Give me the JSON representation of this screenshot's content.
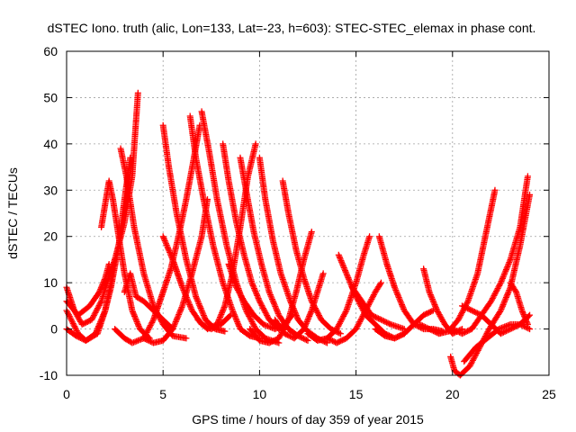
{
  "chart_data": {
    "type": "scatter",
    "title": "dSTEC Iono. truth (alic, Lon=133, Lat=-23, h=603): STEC-STEC_elemax in phase cont.",
    "xlabel": "GPS time / hours of day 359 of year 2015",
    "ylabel": "dSTEC  / TECUs",
    "xlim": [
      0,
      25
    ],
    "ylim": [
      -10,
      60
    ],
    "xticks": [
      0,
      5,
      10,
      15,
      20,
      25
    ],
    "yticks": [
      -10,
      0,
      10,
      20,
      30,
      40,
      50,
      60
    ],
    "grid": true,
    "marker": "plus",
    "color": "#ff0000",
    "series": [
      {
        "points": [
          [
            0.0,
            9
          ],
          [
            0.4,
            4
          ],
          [
            0.8,
            1
          ],
          [
            1.3,
            2
          ],
          [
            1.8,
            6
          ],
          [
            2.1,
            10
          ],
          [
            2.5,
            15
          ],
          [
            3.0,
            23
          ],
          [
            3.4,
            33
          ],
          [
            3.7,
            51
          ]
        ]
      },
      {
        "points": [
          [
            0.0,
            4
          ],
          [
            0.6,
            -1
          ],
          [
            1.0,
            -2.5
          ],
          [
            1.6,
            -1
          ],
          [
            2.0,
            4
          ],
          [
            2.3,
            9
          ],
          [
            2.7,
            18
          ],
          [
            3.0,
            28
          ],
          [
            3.3,
            37
          ]
        ]
      },
      {
        "points": [
          [
            0.0,
            0
          ],
          [
            0.5,
            -1.5
          ],
          [
            1.0,
            -2.5
          ],
          [
            1.5,
            -1
          ],
          [
            2.0,
            4
          ],
          [
            2.3,
            10
          ],
          [
            2.5,
            15
          ]
        ]
      },
      {
        "points": [
          [
            1.8,
            22
          ],
          [
            2.0,
            27
          ],
          [
            2.2,
            32
          ],
          [
            2.4,
            28
          ],
          [
            2.7,
            20
          ],
          [
            3.0,
            12
          ],
          [
            3.4,
            4
          ],
          [
            3.8,
            0
          ],
          [
            4.3,
            -2
          ]
        ]
      },
      {
        "points": [
          [
            0.0,
            6
          ],
          [
            0.6,
            3
          ],
          [
            1.2,
            5
          ],
          [
            1.7,
            8
          ],
          [
            2.0,
            11
          ],
          [
            2.2,
            14
          ]
        ]
      },
      {
        "points": [
          [
            2.8,
            39
          ],
          [
            3.1,
            33
          ],
          [
            3.5,
            22
          ],
          [
            4.0,
            12
          ],
          [
            4.5,
            5
          ],
          [
            5.0,
            1
          ],
          [
            5.5,
            -1.5
          ],
          [
            6.2,
            -2
          ]
        ]
      },
      {
        "points": [
          [
            2.5,
            0
          ],
          [
            3.0,
            -2
          ],
          [
            3.4,
            -3
          ],
          [
            4.0,
            -2
          ],
          [
            4.5,
            2
          ],
          [
            5.0,
            8
          ],
          [
            5.4,
            13
          ],
          [
            5.8,
            20
          ],
          [
            6.2,
            28
          ],
          [
            6.6,
            37
          ],
          [
            6.9,
            44
          ]
        ]
      },
      {
        "points": [
          [
            3.0,
            8
          ],
          [
            3.3,
            12
          ],
          [
            3.6,
            7
          ],
          [
            4.0,
            6
          ],
          [
            4.5,
            4
          ],
          [
            5.0,
            2
          ],
          [
            5.5,
            0
          ]
        ]
      },
      {
        "points": [
          [
            5.0,
            44
          ],
          [
            5.3,
            35
          ],
          [
            5.7,
            25
          ],
          [
            6.2,
            15
          ],
          [
            6.7,
            7
          ],
          [
            7.2,
            2
          ],
          [
            7.7,
            0
          ],
          [
            8.2,
            -0.5
          ]
        ]
      },
      {
        "points": [
          [
            4.0,
            -2
          ],
          [
            4.5,
            -3
          ],
          [
            5.0,
            -2.5
          ],
          [
            5.5,
            0
          ],
          [
            6.0,
            5
          ],
          [
            6.5,
            12
          ],
          [
            7.0,
            20
          ],
          [
            7.3,
            28
          ]
        ]
      },
      {
        "points": [
          [
            5.0,
            20
          ],
          [
            5.5,
            15
          ],
          [
            6.0,
            9
          ],
          [
            6.5,
            4
          ],
          [
            7.0,
            1
          ],
          [
            7.5,
            0
          ],
          [
            8.0,
            1
          ],
          [
            8.5,
            3
          ]
        ]
      },
      {
        "points": [
          [
            6.4,
            46
          ],
          [
            6.7,
            37
          ],
          [
            7.1,
            28
          ],
          [
            7.6,
            18
          ],
          [
            8.1,
            10
          ],
          [
            8.6,
            4
          ],
          [
            9.0,
            0
          ],
          [
            9.5,
            -1.5
          ],
          [
            10.0,
            -2
          ]
        ]
      },
      {
        "points": [
          [
            7.0,
            47
          ],
          [
            7.4,
            38
          ],
          [
            7.8,
            28
          ],
          [
            8.3,
            18
          ],
          [
            8.8,
            10
          ],
          [
            9.3,
            4
          ],
          [
            9.8,
            0
          ],
          [
            10.3,
            -2
          ],
          [
            11.0,
            -3
          ]
        ]
      },
      {
        "points": [
          [
            6.8,
            2
          ],
          [
            7.3,
            0
          ],
          [
            7.8,
            1
          ],
          [
            8.2,
            5
          ],
          [
            8.6,
            12
          ],
          [
            9.0,
            22
          ],
          [
            9.4,
            33
          ],
          [
            9.8,
            40
          ]
        ]
      },
      {
        "points": [
          [
            8.1,
            40
          ],
          [
            8.4,
            32
          ],
          [
            8.8,
            23
          ],
          [
            9.2,
            16
          ],
          [
            9.6,
            10
          ],
          [
            10.0,
            6
          ],
          [
            10.5,
            2
          ],
          [
            11.0,
            0
          ]
        ]
      },
      {
        "points": [
          [
            8.4,
            14
          ],
          [
            8.8,
            9
          ],
          [
            9.2,
            6
          ],
          [
            9.7,
            3
          ],
          [
            10.2,
            1
          ],
          [
            10.8,
            0
          ],
          [
            11.3,
            1
          ],
          [
            11.7,
            3
          ]
        ]
      },
      {
        "points": [
          [
            9.0,
            37
          ],
          [
            9.3,
            30
          ],
          [
            9.7,
            21
          ],
          [
            10.1,
            14
          ],
          [
            10.5,
            8
          ],
          [
            11.0,
            3
          ],
          [
            11.5,
            0
          ],
          [
            12.0,
            -1.5
          ],
          [
            12.5,
            -2.5
          ]
        ]
      },
      {
        "points": [
          [
            10.0,
            37
          ],
          [
            10.3,
            28
          ],
          [
            10.7,
            19
          ],
          [
            11.1,
            12
          ],
          [
            11.6,
            6
          ],
          [
            12.0,
            2
          ],
          [
            12.5,
            -0.5
          ],
          [
            13.0,
            -2
          ],
          [
            13.5,
            -3
          ]
        ]
      },
      {
        "points": [
          [
            11.2,
            32
          ],
          [
            11.5,
            25
          ],
          [
            11.9,
            17
          ],
          [
            12.3,
            11
          ],
          [
            12.7,
            6
          ],
          [
            13.2,
            2
          ],
          [
            13.7,
            0
          ],
          [
            14.2,
            -1
          ]
        ]
      },
      {
        "points": [
          [
            9.5,
            0
          ],
          [
            10.0,
            -2.5
          ],
          [
            10.5,
            -3
          ],
          [
            11.0,
            -2
          ],
          [
            11.5,
            2
          ],
          [
            11.9,
            8
          ],
          [
            12.3,
            15
          ],
          [
            12.7,
            21
          ]
        ]
      },
      {
        "points": [
          [
            10.8,
            2
          ],
          [
            11.3,
            -1
          ],
          [
            11.8,
            -2
          ],
          [
            12.3,
            0
          ],
          [
            12.7,
            4
          ],
          [
            13.0,
            8
          ],
          [
            13.3,
            12
          ]
        ]
      },
      {
        "points": [
          [
            12.5,
            -1
          ],
          [
            13.0,
            -2.5
          ],
          [
            13.5,
            -2
          ],
          [
            14.0,
            0
          ],
          [
            14.5,
            4
          ],
          [
            15.0,
            10
          ],
          [
            15.4,
            16
          ],
          [
            15.7,
            20
          ]
        ]
      },
      {
        "points": [
          [
            13.5,
            -2
          ],
          [
            14.0,
            -3
          ],
          [
            14.5,
            -2
          ],
          [
            15.0,
            0
          ],
          [
            15.5,
            4
          ],
          [
            16.0,
            8
          ],
          [
            16.3,
            10
          ]
        ]
      },
      {
        "points": [
          [
            14.1,
            16
          ],
          [
            14.5,
            12
          ],
          [
            15.0,
            7
          ],
          [
            15.5,
            3
          ],
          [
            16.0,
            1
          ],
          [
            16.5,
            -1
          ],
          [
            17.0,
            -2
          ],
          [
            17.5,
            -1
          ]
        ]
      },
      {
        "points": [
          [
            16.2,
            20
          ],
          [
            16.6,
            14
          ],
          [
            17.0,
            9
          ],
          [
            17.5,
            4
          ],
          [
            18.0,
            1
          ],
          [
            18.5,
            0
          ],
          [
            19.0,
            0
          ],
          [
            19.5,
            -0.5
          ]
        ]
      },
      {
        "points": [
          [
            14.8,
            9
          ],
          [
            15.3,
            6
          ],
          [
            15.8,
            3
          ],
          [
            16.3,
            2
          ],
          [
            16.8,
            1
          ],
          [
            17.5,
            0
          ]
        ]
      },
      {
        "points": [
          [
            16.0,
            0
          ],
          [
            16.5,
            -1.5
          ],
          [
            17.0,
            -2
          ],
          [
            17.5,
            -1
          ],
          [
            18.0,
            1
          ],
          [
            18.5,
            3
          ],
          [
            19.0,
            4
          ]
        ]
      },
      {
        "points": [
          [
            18.5,
            13
          ],
          [
            18.8,
            8
          ],
          [
            19.2,
            4
          ],
          [
            19.6,
            1
          ],
          [
            20.0,
            -1
          ],
          [
            20.5,
            0
          ]
        ]
      },
      {
        "points": [
          [
            18.3,
            1
          ],
          [
            18.8,
            0
          ],
          [
            19.3,
            -1
          ],
          [
            19.8,
            -0.5
          ],
          [
            20.3,
            2
          ],
          [
            20.8,
            6
          ],
          [
            21.3,
            12
          ],
          [
            21.8,
            22
          ],
          [
            22.2,
            30
          ]
        ]
      },
      {
        "points": [
          [
            19.9,
            -6
          ],
          [
            20.1,
            -9
          ],
          [
            20.4,
            -10
          ],
          [
            20.9,
            -8
          ],
          [
            21.4,
            -4
          ],
          [
            21.9,
            0
          ],
          [
            22.5,
            4
          ],
          [
            23.0,
            9
          ],
          [
            23.5,
            18
          ],
          [
            24.0,
            29
          ]
        ]
      },
      {
        "points": [
          [
            20.0,
            0
          ],
          [
            20.5,
            -1
          ],
          [
            21.0,
            0
          ],
          [
            21.5,
            3
          ],
          [
            22.0,
            6
          ],
          [
            22.5,
            10
          ],
          [
            23.0,
            15
          ],
          [
            23.5,
            22
          ],
          [
            23.9,
            33
          ]
        ]
      },
      {
        "points": [
          [
            20.5,
            5
          ],
          [
            21.0,
            4
          ],
          [
            21.5,
            3
          ],
          [
            22.0,
            1
          ],
          [
            22.5,
            -1
          ],
          [
            23.0,
            0
          ],
          [
            23.5,
            1
          ],
          [
            24.0,
            3
          ]
        ]
      },
      {
        "points": [
          [
            23.0,
            10
          ],
          [
            23.3,
            8
          ],
          [
            23.6,
            4
          ],
          [
            23.9,
            1
          ]
        ]
      },
      {
        "points": [
          [
            20.6,
            -7
          ],
          [
            21.2,
            -4
          ],
          [
            21.8,
            -2
          ],
          [
            22.4,
            0
          ],
          [
            23.0,
            1
          ],
          [
            23.5,
            1
          ],
          [
            24.0,
            0
          ]
        ]
      }
    ]
  }
}
